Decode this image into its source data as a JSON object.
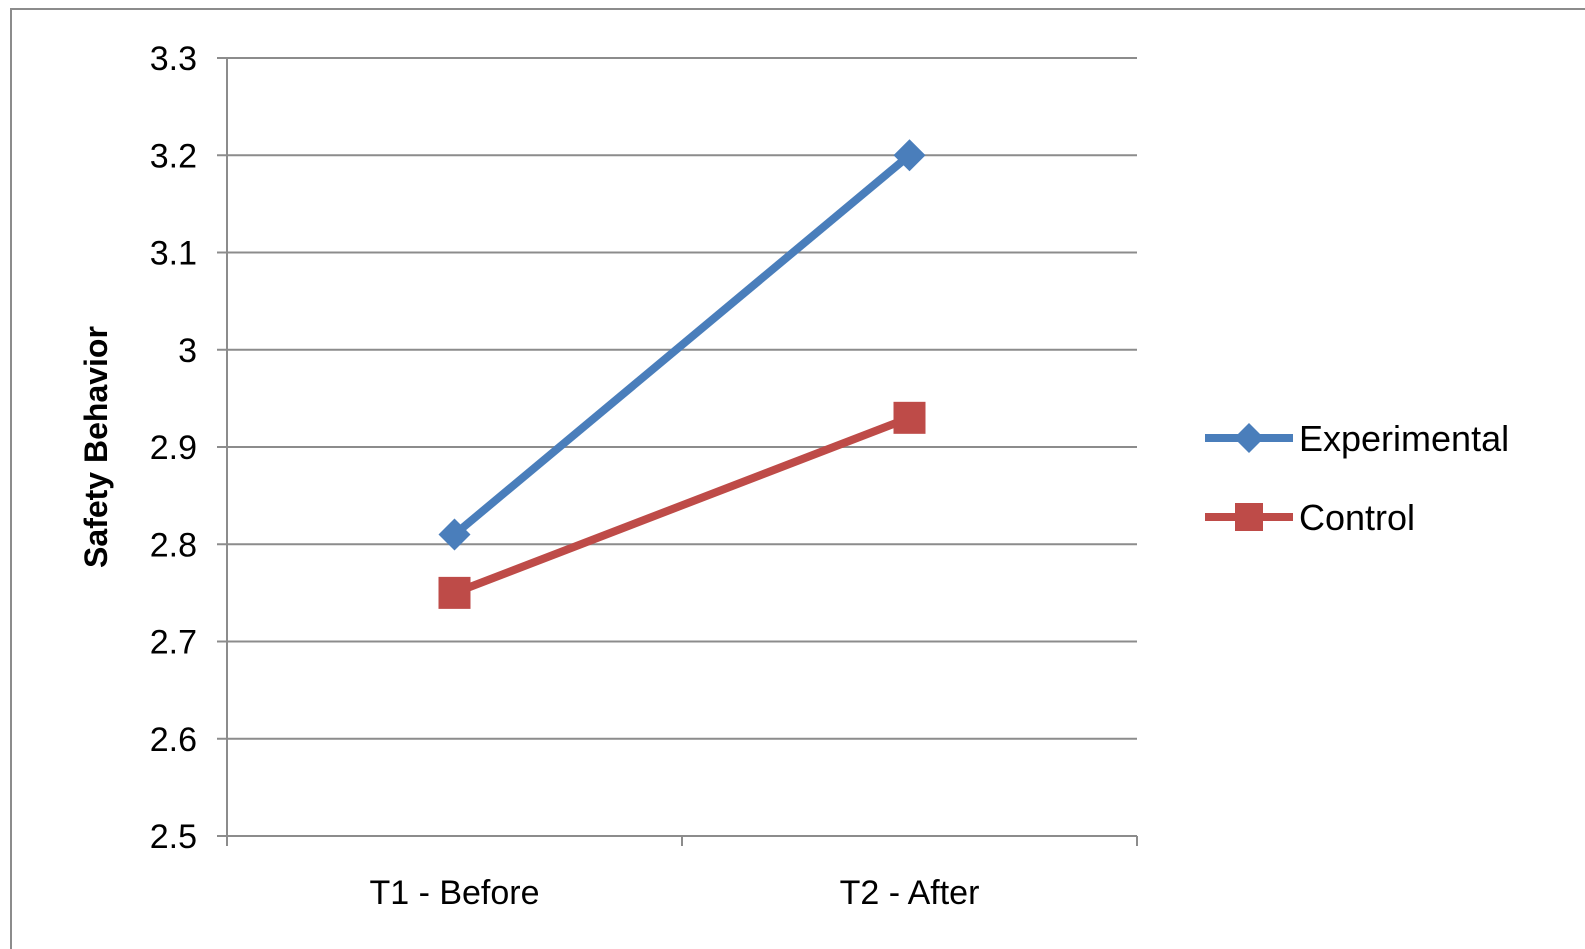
{
  "chart_data": {
    "type": "line",
    "title": "",
    "xlabel": "",
    "ylabel": "Safety Behavior",
    "categories": [
      "T1 - Before",
      "T2 - After"
    ],
    "ylim": [
      2.5,
      3.3
    ],
    "y_ticks": [
      2.5,
      2.6,
      2.7,
      2.8,
      2.9,
      3,
      3.1,
      3.2,
      3.3
    ],
    "y_tick_labels": [
      "2.5",
      "2.6",
      "2.7",
      "2.8",
      "2.9",
      "3",
      "3.1",
      "3.2",
      "3.3"
    ],
    "grid": true,
    "legend": "right",
    "series": [
      {
        "name": "Experimental",
        "values": [
          2.81,
          3.2
        ],
        "color": "#4a7ebb",
        "marker": "diamond"
      },
      {
        "name": "Control",
        "values": [
          2.75,
          2.93
        ],
        "color": "#be4b48",
        "marker": "square"
      }
    ]
  }
}
